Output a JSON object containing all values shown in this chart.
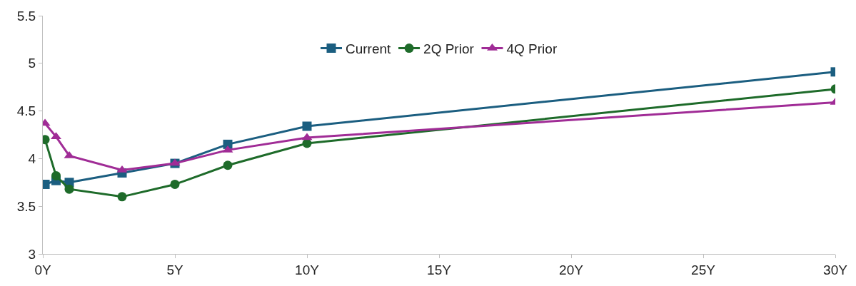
{
  "chart_data": {
    "type": "line",
    "x": [
      0.083,
      0.5,
      1,
      3,
      5,
      7,
      10,
      30
    ],
    "series": [
      {
        "name": "Current",
        "color": "#1b5e80",
        "marker": "square",
        "values": [
          3.73,
          3.77,
          3.75,
          3.85,
          3.95,
          4.15,
          4.34,
          4.91
        ]
      },
      {
        "name": "2Q Prior",
        "color": "#1e6b2a",
        "marker": "circle",
        "values": [
          4.2,
          3.82,
          3.68,
          3.6,
          3.73,
          3.93,
          4.16,
          4.73
        ]
      },
      {
        "name": "4Q Prior",
        "color": "#a02c96",
        "marker": "triangle",
        "values": [
          4.37,
          4.23,
          4.03,
          3.88,
          3.95,
          4.09,
          4.22,
          4.59
        ]
      }
    ],
    "xlim": [
      0,
      30
    ],
    "xticks": [
      {
        "value": 0,
        "label": "0Y"
      },
      {
        "value": 5,
        "label": "5Y"
      },
      {
        "value": 10,
        "label": "10Y"
      },
      {
        "value": 15,
        "label": "15Y"
      },
      {
        "value": 20,
        "label": "20Y"
      },
      {
        "value": 25,
        "label": "25Y"
      },
      {
        "value": 30,
        "label": "30Y"
      }
    ],
    "ylim": [
      3,
      5.5
    ],
    "yticks": [
      3,
      3.5,
      4,
      4.5,
      5,
      5.5
    ],
    "legend": "top",
    "line_style": "solid"
  }
}
